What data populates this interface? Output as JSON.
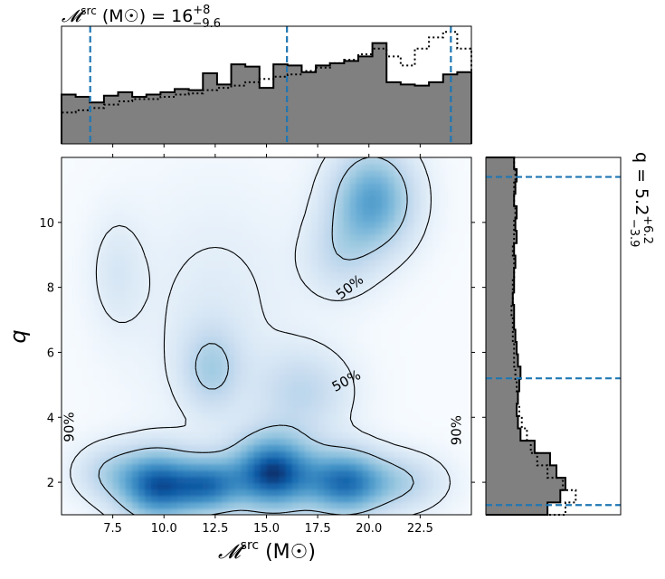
{
  "chart_data": {
    "type": "heatmap",
    "subtype": "corner plot (2D density with marginal histograms)",
    "title_top": {
      "label": "𝓜",
      "superscript": "src",
      "unit": "(M☉) = 16",
      "upper": "+8",
      "lower": "−9.6"
    },
    "title_right": {
      "label": "q = 5.2",
      "upper": "+6.2",
      "lower": "−3.9"
    },
    "xlabel": {
      "label": "𝓜",
      "superscript": "src",
      "unit": " (M☉)"
    },
    "ylabel": "q",
    "xlim": [
      5,
      25
    ],
    "ylim": [
      1,
      12
    ],
    "x_ticks": [
      "7.5",
      "10.0",
      "12.5",
      "15.0",
      "17.5",
      "20.0",
      "22.5"
    ],
    "x_tick_values": [
      7.5,
      10.0,
      12.5,
      15.0,
      17.5,
      20.0,
      22.5
    ],
    "y_ticks": [
      "2",
      "4",
      "6",
      "8",
      "10"
    ],
    "y_tick_values": [
      2,
      4,
      6,
      8,
      10
    ],
    "contour_labels": [
      "50%",
      "50%",
      "90%",
      "90%"
    ],
    "mchirp_quantiles": [
      6.4,
      16.0,
      24.0
    ],
    "q_quantiles": [
      1.3,
      5.2,
      11.4
    ],
    "density_blobs": [
      {
        "x": 9.7,
        "y": 1.9,
        "sx": 1.3,
        "sy": 0.75,
        "w": 0.85
      },
      {
        "x": 12.2,
        "y": 1.9,
        "sx": 1.1,
        "sy": 0.6,
        "w": 0.65
      },
      {
        "x": 15.3,
        "y": 2.3,
        "sx": 1.4,
        "sy": 0.8,
        "w": 0.95
      },
      {
        "x": 18.8,
        "y": 2.0,
        "sx": 1.3,
        "sy": 0.7,
        "w": 0.75
      },
      {
        "x": 21.5,
        "y": 2.0,
        "sx": 1.5,
        "sy": 0.6,
        "w": 0.3
      },
      {
        "x": 7.3,
        "y": 2.3,
        "sx": 1.2,
        "sy": 0.6,
        "w": 0.25
      },
      {
        "x": 20.2,
        "y": 10.7,
        "sx": 1.4,
        "sy": 1.1,
        "w": 0.6
      },
      {
        "x": 18.6,
        "y": 9.0,
        "sx": 1.2,
        "sy": 0.9,
        "w": 0.2
      },
      {
        "x": 12.3,
        "y": 5.5,
        "sx": 1.0,
        "sy": 0.9,
        "w": 0.3
      },
      {
        "x": 16.8,
        "y": 4.8,
        "sx": 1.6,
        "sy": 0.9,
        "w": 0.25
      },
      {
        "x": 7.7,
        "y": 8.5,
        "sx": 0.9,
        "sy": 1.2,
        "w": 0.12
      },
      {
        "x": 12.5,
        "y": 7.5,
        "sx": 3.0,
        "sy": 2.5,
        "w": 0.1
      }
    ],
    "hist_mchirp": {
      "bin_edges": [
        5.0,
        5.69,
        6.38,
        7.07,
        7.76,
        8.45,
        9.14,
        9.83,
        10.52,
        11.21,
        11.9,
        12.59,
        13.28,
        13.97,
        14.66,
        15.34,
        16.03,
        16.72,
        17.41,
        18.1,
        18.79,
        19.48,
        20.17,
        20.86,
        21.55,
        22.24,
        22.93,
        23.62,
        24.31,
        25.0
      ],
      "values": [
        0.44,
        0.42,
        0.37,
        0.43,
        0.46,
        0.42,
        0.44,
        0.46,
        0.49,
        0.48,
        0.63,
        0.53,
        0.71,
        0.69,
        0.5,
        0.71,
        0.7,
        0.64,
        0.7,
        0.72,
        0.74,
        0.78,
        0.9,
        0.55,
        0.53,
        0.52,
        0.55,
        0.62,
        0.64
      ],
      "dotted_values": [
        0.28,
        0.3,
        0.32,
        0.35,
        0.38,
        0.4,
        0.4,
        0.42,
        0.44,
        0.45,
        0.48,
        0.5,
        0.52,
        0.55,
        0.58,
        0.6,
        0.62,
        0.65,
        0.68,
        0.72,
        0.75,
        0.8,
        0.85,
        0.78,
        0.7,
        0.85,
        0.95,
        1.0,
        0.85
      ],
      "ymax": 1.05
    },
    "hist_q": {
      "bin_edges": [
        1.0,
        1.38,
        1.76,
        2.14,
        2.52,
        2.9,
        3.28,
        3.66,
        4.04,
        4.42,
        4.8,
        5.18,
        5.56,
        5.94,
        6.32,
        6.7,
        7.08,
        7.46,
        7.84,
        8.22,
        8.6,
        8.98,
        9.36,
        9.74,
        10.12,
        10.5,
        10.88,
        11.26,
        11.64,
        12.0
      ],
      "values": [
        0.48,
        0.58,
        0.62,
        0.55,
        0.5,
        0.38,
        0.27,
        0.25,
        0.24,
        0.25,
        0.26,
        0.27,
        0.25,
        0.24,
        0.23,
        0.22,
        0.22,
        0.21,
        0.22,
        0.22,
        0.23,
        0.22,
        0.24,
        0.23,
        0.24,
        0.22,
        0.23,
        0.24,
        0.22
      ],
      "dotted_values": [
        0.62,
        0.7,
        0.6,
        0.48,
        0.4,
        0.35,
        0.32,
        0.28,
        0.26,
        0.25,
        0.24,
        0.23,
        0.22,
        0.22,
        0.21,
        0.21,
        0.2,
        0.21,
        0.21,
        0.22,
        0.22,
        0.21,
        0.22,
        0.22,
        0.23,
        0.22,
        0.22,
        0.23,
        0.22
      ],
      "xmax": 1.05
    },
    "colors": {
      "density_low": "#f7fbff",
      "density_high": "#08306b",
      "hist_fill": "#808080",
      "quantile_line": "#1f77b4"
    }
  }
}
